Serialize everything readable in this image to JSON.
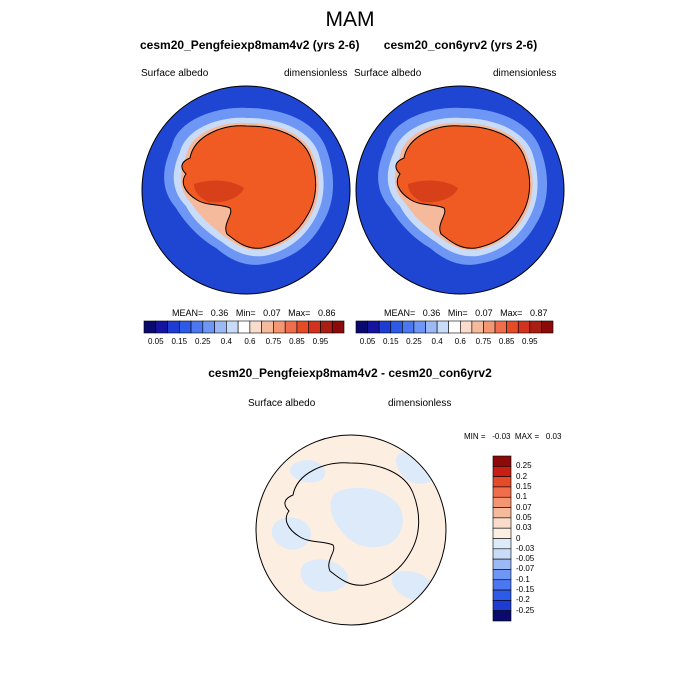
{
  "figure": {
    "title": "MAM",
    "variable": "Surface albedo",
    "units": "dimensionless"
  },
  "panels": [
    {
      "case": "cesm20_Pengfeiexp8mam4v2 (yrs 2-6)",
      "variable": "Surface albedo",
      "units": "dimensionless",
      "stats": {
        "mean_label": "MEAN=",
        "mean": "0.36",
        "min_label": "Min=",
        "min": "0.07",
        "max_label": "Max=",
        "max": "0.86"
      }
    },
    {
      "case": "cesm20_con6yrv2 (yrs 2-6)",
      "variable": "Surface albedo",
      "units": "dimensionless",
      "stats": {
        "mean_label": "MEAN=",
        "mean": "0.36",
        "min_label": "Min=",
        "min": "0.07",
        "max_label": "Max=",
        "max": "0.87"
      }
    }
  ],
  "diff_panel": {
    "case": "cesm20_Pengfeiexp8mam4v2 - cesm20_con6yrv2",
    "variable": "Surface albedo",
    "units": "dimensionless",
    "stats": {
      "min_label": "MIN =",
      "min": "-0.03",
      "max_label": "MAX =",
      "max": "0.03"
    }
  },
  "colorbar_main": {
    "labels": [
      "0.05",
      "0.15",
      "0.25",
      "0.4",
      "0.6",
      "0.75",
      "0.85",
      "0.95"
    ],
    "colors": [
      "#0a0a6e",
      "#1414a0",
      "#1e3cd2",
      "#2d5ae6",
      "#4b78f0",
      "#6e96f5",
      "#9bb9f5",
      "#c8dcfa",
      "#ffffff",
      "#fadccd",
      "#f5b99b",
      "#f59673",
      "#f06e4b",
      "#e64b28",
      "#d2321e",
      "#aa1e14",
      "#8c0a0a"
    ]
  },
  "colorbar_diff": {
    "labels": [
      "0.25",
      "0.2",
      "0.15",
      "0.1",
      "0.07",
      "0.05",
      "0.03",
      "0",
      "-0.03",
      "-0.05",
      "-0.07",
      "-0.1",
      "-0.15",
      "-0.2",
      "-0.25"
    ],
    "colors": [
      "#8c0a0a",
      "#c81e14",
      "#e64b28",
      "#f06e4b",
      "#f59673",
      "#f5b99b",
      "#fadccd",
      "#fdeee2",
      "#ddeafa",
      "#c8dcfa",
      "#9bb9f5",
      "#6e96f5",
      "#4b78f0",
      "#2d5ae6",
      "#1e3cd2",
      "#0a0a6e"
    ]
  },
  "map_colors": {
    "ocean": "#1e46d2",
    "sea_ice_edge": "#6e96f5",
    "sea_ice_light": "#c8dcfa",
    "ice_sheet": "#f05a23",
    "ice_shelf": "#e64b1e",
    "diff_background": "#fdeee2",
    "diff_negative": "#ddeafa"
  }
}
